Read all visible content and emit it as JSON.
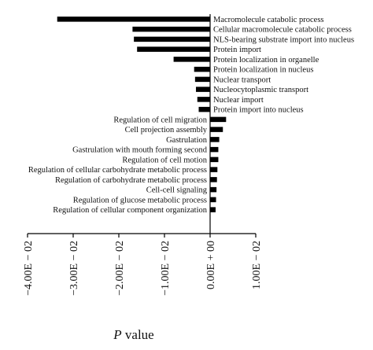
{
  "chart_data": {
    "type": "bar",
    "orientation": "horizontal",
    "title": "",
    "xlabel_italic": "P",
    "xlabel_rest": " value",
    "xlim": [
      -0.04,
      0.01
    ],
    "x_ticks": [
      -0.04,
      -0.03,
      -0.02,
      -0.01,
      0.0,
      0.01
    ],
    "x_tick_labels": [
      "−4.00E − 02",
      "−3.00E − 02",
      "−2.00E − 02",
      "−1.00E − 02",
      "0.00E + 00",
      "1.00E − 02"
    ],
    "grid": false,
    "categories": [
      "Macromolecule catabolic process",
      "Cellular macromolecule catabolic process",
      "NLS-bearing substrate import into nucleus",
      "Protein import",
      "Protein localization in organelle",
      "Protein localization in nucleus",
      "Nuclear transport",
      "Nucleocytoplasmic transport",
      "Nuclear import",
      "Protein import into nucleus",
      "Regulation of cell migration",
      "Cell projection assembly",
      "Gastrulation",
      "Gastrulation with mouth forming second",
      "Regulation of cell motion",
      "Regulation of cellular carbohydrate metabolic process",
      "Regulation of carbohydrate metabolic process",
      "Cell-cell signaling",
      "Regulation of glucose metabolic process",
      "Regulation of cellular component organization"
    ],
    "values": [
      -0.0335,
      -0.017,
      -0.0167,
      -0.016,
      -0.008,
      -0.0035,
      -0.0033,
      -0.0031,
      -0.0028,
      -0.0025,
      0.0035,
      0.0028,
      0.002,
      0.0018,
      0.0018,
      0.0016,
      0.0015,
      0.0014,
      0.0013,
      0.0012
    ],
    "bar_color": "#000000"
  }
}
